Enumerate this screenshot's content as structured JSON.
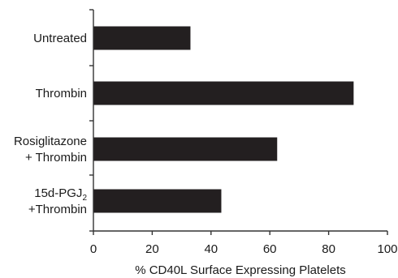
{
  "chart_data": {
    "type": "bar",
    "orientation": "horizontal",
    "categories": [
      {
        "lines": [
          "Untreated"
        ]
      },
      {
        "lines": [
          "Thrombin"
        ]
      },
      {
        "lines": [
          "Rosiglitazone",
          "+ Thrombin"
        ]
      },
      {
        "lines": [
          "15d-PGJ",
          "+Thrombin"
        ],
        "subscript": "2"
      }
    ],
    "values": [
      33,
      88.5,
      62.5,
      43.5
    ],
    "xlabel": "% CD40L Surface Expressing Platelets",
    "xlim": [
      0,
      100
    ],
    "xticks": [
      "0",
      "20",
      "40",
      "60",
      "80",
      "100"
    ],
    "grid": false,
    "legend": "none",
    "bar_color": "#231f20"
  }
}
